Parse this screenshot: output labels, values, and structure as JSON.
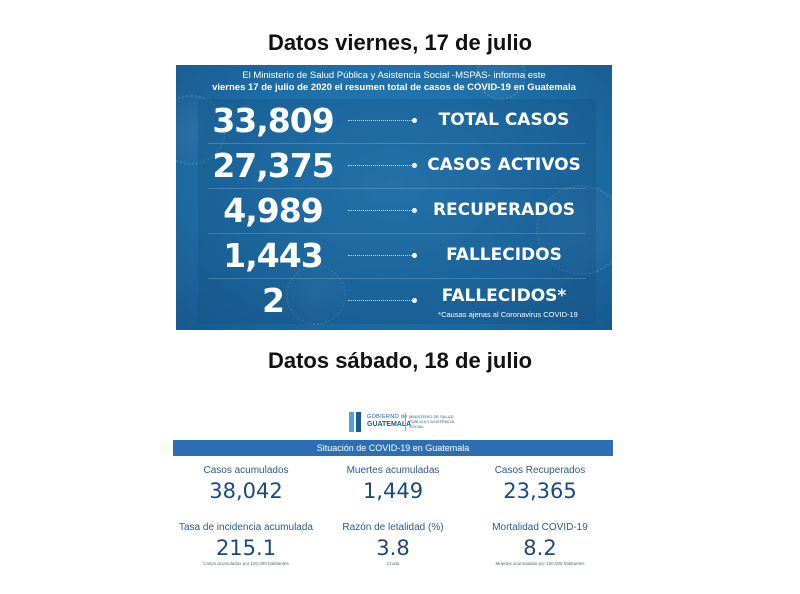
{
  "heading1": "Datos viernes, 17 de julio",
  "heading2": "Datos sábado, 18 de julio",
  "infographic1": {
    "header_line1": "El Ministerio de Salud Pública y Asistencia Social -MSPAS- informa este",
    "header_line2": "viernes 17 de julio de 2020 el resumen total de casos de COVID-19 en Guatemala",
    "stats": [
      {
        "value": "33,809",
        "label": "TOTAL CASOS"
      },
      {
        "value": "27,375",
        "label": "CASOS ACTIVOS"
      },
      {
        "value": "4,989",
        "label": "RECUPERADOS"
      },
      {
        "value": "1,443",
        "label": "FALLECIDOS"
      },
      {
        "value": "2",
        "label": "FALLECIDOS*",
        "note": "*Causas ajenas al Coronavirus COVID-19"
      }
    ],
    "colors": {
      "background": "#1f6fa9",
      "text": "#ffffff"
    }
  },
  "infographic2": {
    "logo": {
      "line1": "GOBIERNO de",
      "line2": "GUATEMALA",
      "ministry": "Ministerio de Salud Pública y Asistencia Social"
    },
    "situation_title": "Situación de COVID-19 en Guatemala",
    "cells": [
      {
        "label": "Casos acumulados",
        "value": "38,042",
        "sub": ""
      },
      {
        "label": "Muertes acumuladas",
        "value": "1,449",
        "sub": ""
      },
      {
        "label": "Casos Recuperados",
        "value": "23,365",
        "sub": ""
      },
      {
        "label": "Tasa de incidencia acumulada",
        "value": "215.1",
        "sub": "Casos acumulados por 100,000 habitantes"
      },
      {
        "label": "Razón de letalidad (%)",
        "value": "3.8",
        "sub": "Cruda"
      },
      {
        "label": "Mortalidad COVID-19",
        "value": "8.2",
        "sub": "Muertes acumuladas por 100,000 habitantes"
      }
    ],
    "colors": {
      "bar": "#2e6fb3",
      "value": "#1a4a82"
    }
  }
}
